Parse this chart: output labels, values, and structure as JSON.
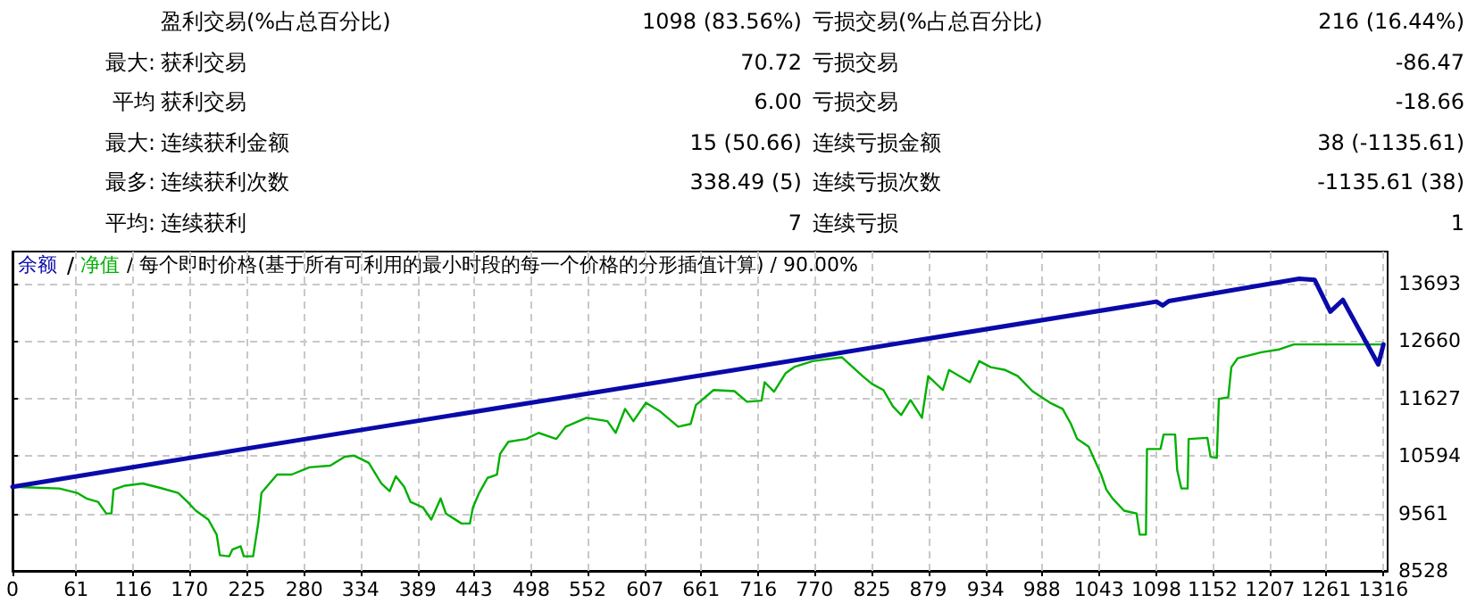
{
  "chart_data": {
    "type": "line",
    "subtitle": "/ 每个即时价格(基于所有可利用的最小时段的每一个价格的分形插值计算) / 90.00%",
    "annotations": [
      "盈利交易(%占总百分比)",
      "1098 (83.56%)",
      "亏损交易(%占总百分比)",
      "216 (16.44%)",
      "最大:",
      "获利交易",
      "70.72",
      "亏损交易",
      "-86.47",
      "平均",
      "获利交易",
      "6.00",
      "亏损交易",
      "-18.66",
      "最大:",
      "连续获利金额",
      "15 (50.66)",
      "连续亏损金额",
      "38 (-1135.61)",
      "最多:",
      "连续获利次数",
      "338.49 (5)",
      "连续亏损次数",
      "-1135.61 (38)",
      "平均:",
      "连续获利",
      "7",
      "连续亏损",
      "1"
    ],
    "xlim": [
      0,
      1320
    ],
    "xticks": [
      0,
      61,
      116,
      170,
      225,
      280,
      334,
      389,
      443,
      498,
      552,
      607,
      661,
      716,
      770,
      825,
      879,
      934,
      988,
      1043,
      1098,
      1152,
      1207,
      1261,
      1316
    ],
    "ylim": [
      8528,
      14270
    ],
    "yticks": [
      8528,
      9561,
      10594,
      11627,
      12660,
      13693
    ],
    "grid": true,
    "legend": "top left",
    "marker": "none",
    "line_style": "solid",
    "series": [
      {
        "name": "余额",
        "color": "#0a0aaa",
        "x": [
          0,
          334,
          716,
          1098,
          1104,
          1110,
          1235,
          1250,
          1265,
          1277,
          1311,
          1316
        ],
        "values": [
          10040,
          11060,
          12210,
          13370,
          13300,
          13380,
          13780,
          13760,
          13190,
          13400,
          12240,
          12600
        ]
      },
      {
        "name": "净值",
        "color": "#00b000",
        "x": [
          0,
          45,
          62,
          71,
          82,
          90,
          95,
          97,
          108,
          125,
          142,
          159,
          168,
          176,
          188,
          196,
          199,
          208,
          211,
          219,
          222,
          231,
          236,
          239,
          254,
          268,
          285,
          305,
          319,
          328,
          342,
          354,
          362,
          368,
          376,
          382,
          394,
          402,
          411,
          416,
          431,
          439,
          442,
          448,
          456,
          465,
          468,
          476,
          493,
          505,
          522,
          531,
          551,
          571,
          579,
          588,
          596,
          608,
          622,
          639,
          651,
          656,
          673,
          693,
          705,
          719,
          722,
          731,
          742,
          751,
          768,
          796,
          816,
          825,
          836,
          845,
          853,
          862,
          873,
          879,
          893,
          899,
          919,
          928,
          939,
          953,
          965,
          979,
          996,
          1008,
          1016,
          1022,
          1033,
          1045,
          1050,
          1056,
          1067,
          1079,
          1082,
          1088,
          1089,
          1102,
          1105,
          1116,
          1118,
          1122,
          1128,
          1129,
          1147,
          1150,
          1156,
          1158,
          1167,
          1170,
          1176,
          1199,
          1216,
          1230,
          1316
        ],
        "values": [
          10040,
          10010,
          9930,
          9830,
          9770,
          9560,
          9560,
          9990,
          10060,
          10100,
          10020,
          9930,
          9770,
          9610,
          9450,
          9180,
          8810,
          8790,
          8910,
          8970,
          8790,
          8790,
          9400,
          9930,
          10260,
          10260,
          10390,
          10420,
          10580,
          10600,
          10470,
          10100,
          9960,
          10230,
          10040,
          9770,
          9670,
          9450,
          9830,
          9560,
          9380,
          9380,
          9670,
          9930,
          10200,
          10260,
          10630,
          10850,
          10900,
          11010,
          10900,
          11120,
          11280,
          11220,
          11010,
          11440,
          11220,
          11550,
          11390,
          11120,
          11170,
          11510,
          11780,
          11760,
          11570,
          11590,
          11920,
          11750,
          12080,
          12200,
          12300,
          12370,
          12030,
          11890,
          11780,
          11490,
          11330,
          11600,
          11280,
          12030,
          11780,
          12140,
          11920,
          12300,
          12190,
          12140,
          12030,
          11760,
          11550,
          11440,
          11170,
          10900,
          10760,
          10260,
          9990,
          9830,
          9610,
          9560,
          9180,
          9180,
          10720,
          10720,
          10980,
          10980,
          10340,
          10010,
          10010,
          10900,
          10920,
          10580,
          10560,
          11620,
          11650,
          12190,
          12350,
          12460,
          12510,
          12600,
          12600
        ]
      }
    ]
  }
}
